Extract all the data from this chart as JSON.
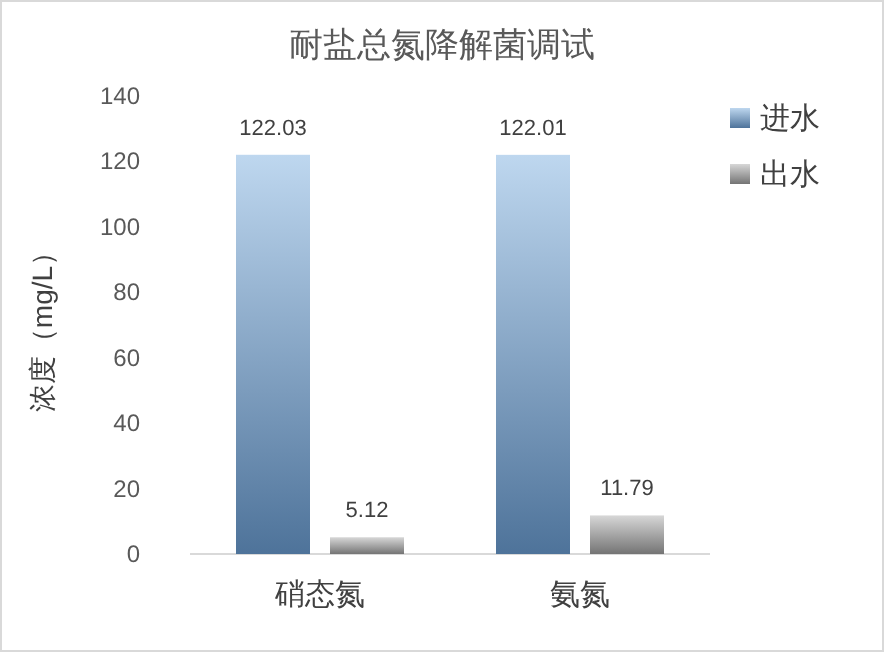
{
  "chart_data": {
    "type": "bar",
    "title": "耐盐总氮降解菌调试",
    "ylabel": "浓度（mg/L）",
    "categories": [
      "硝态氮",
      "氨氮"
    ],
    "series": [
      {
        "name": "进水",
        "color": "#6fa5dc",
        "values": [
          122.03,
          122.01
        ]
      },
      {
        "name": "出水",
        "color": "#a6a6a6",
        "values": [
          5.12,
          11.79
        ]
      }
    ],
    "ylim": [
      0,
      140
    ],
    "yticks": [
      0,
      20,
      40,
      60,
      80,
      100,
      120,
      140
    ],
    "data_labels": true,
    "legend": "top right",
    "grid": false
  }
}
